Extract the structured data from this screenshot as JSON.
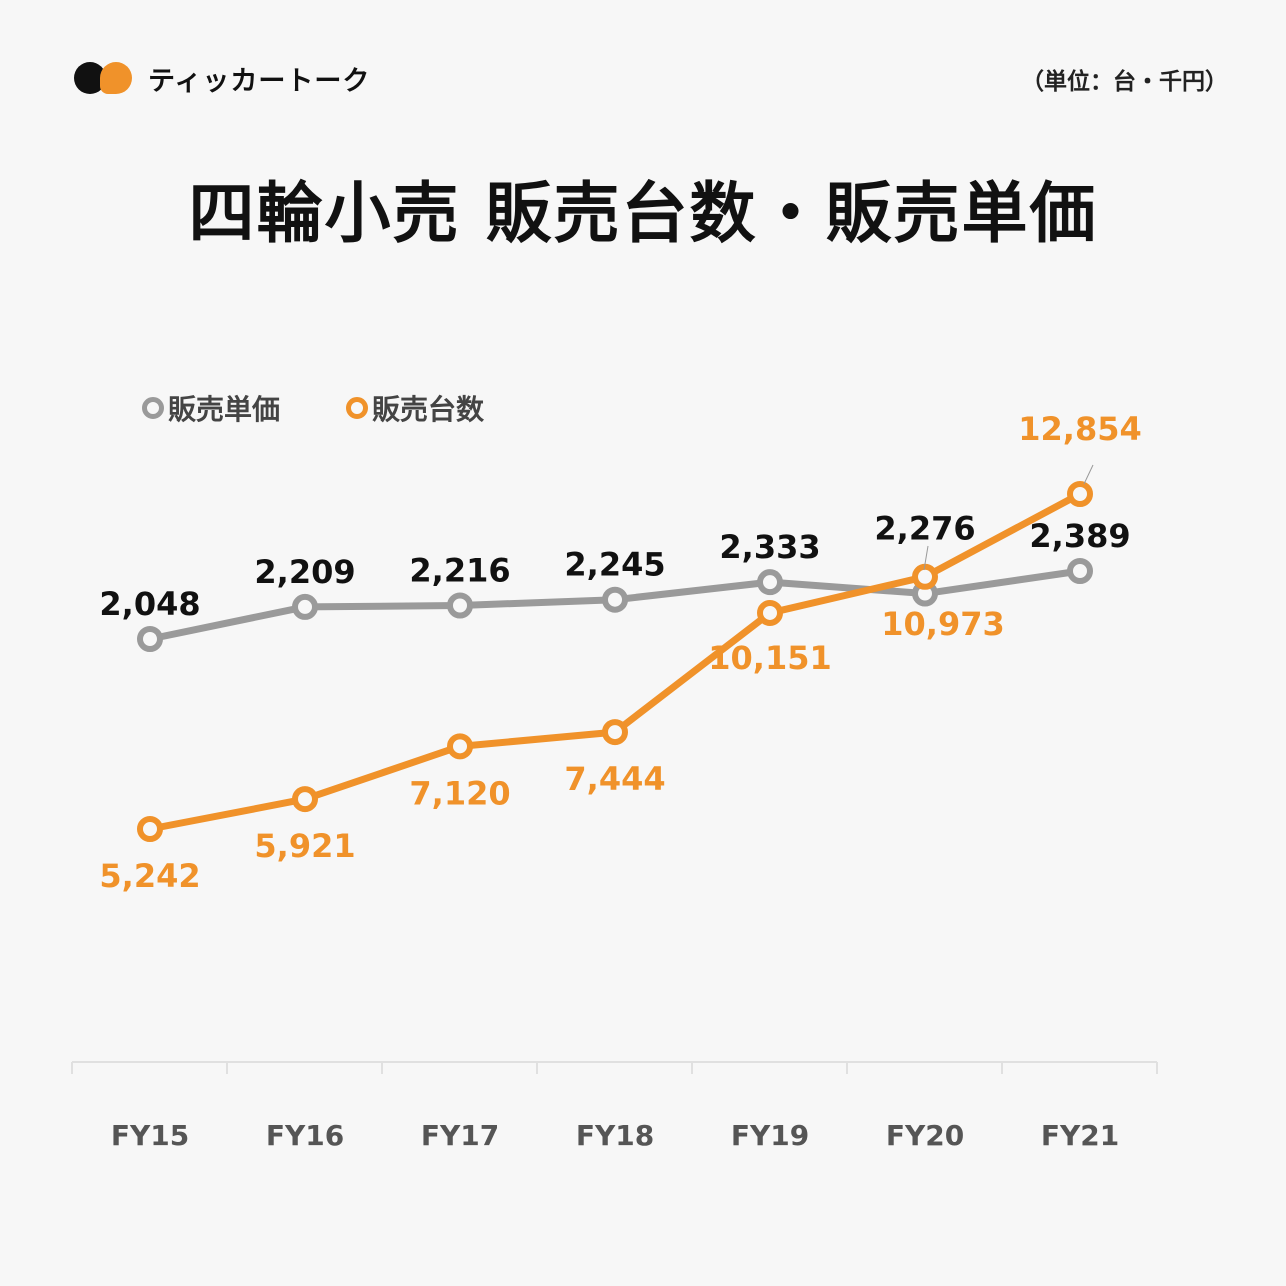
{
  "brand": {
    "name": "ティッカートーク"
  },
  "unit_note": "（単位：台・千円）",
  "title": "四輪小売 販売台数・販売単価",
  "colors": {
    "price": "#9a9a9a",
    "units": "#f0922a",
    "price_label": "#111111",
    "background": "#f7f7f7"
  },
  "chart_data": {
    "type": "line",
    "title": "四輪小売 販売台数・販売単価",
    "categories": [
      "FY15",
      "FY16",
      "FY17",
      "FY18",
      "FY19",
      "FY20",
      "FY21"
    ],
    "series": [
      {
        "name": "販売単価",
        "values": [
          2048,
          2209,
          2216,
          2245,
          2333,
          2276,
          2389
        ],
        "labels": [
          "2,048",
          "2,209",
          "2,216",
          "2,245",
          "2,333",
          "2,276",
          "2,389"
        ]
      },
      {
        "name": "販売台数",
        "values": [
          5242,
          5921,
          7120,
          7444,
          10151,
          10973,
          12854
        ],
        "labels": [
          "5,242",
          "5,921",
          "7,120",
          "7,444",
          "10,151",
          "10,973",
          "12,854"
        ]
      }
    ],
    "legend_position": "top-left",
    "grid": false
  }
}
